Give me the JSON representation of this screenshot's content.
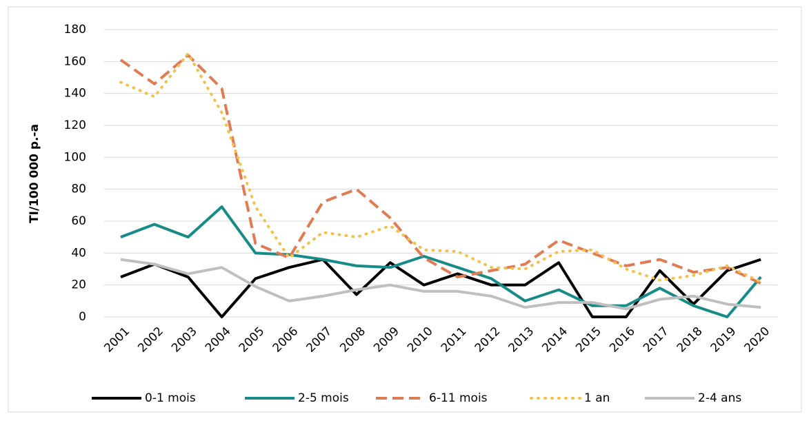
{
  "chart_data": {
    "type": "line",
    "y_label": "TI/100 000 p.-a",
    "categories": [
      "2001",
      "2002",
      "2003",
      "2004",
      "2005",
      "2006",
      "2007",
      "2008",
      "2009",
      "2010",
      "2011",
      "2012",
      "2013",
      "2014",
      "2015",
      "2016",
      "2017",
      "2018",
      "2019",
      "2020"
    ],
    "ylim": [
      0,
      180
    ],
    "yticks": [
      0,
      20,
      40,
      60,
      80,
      100,
      120,
      140,
      160,
      180
    ],
    "grid": true,
    "legend": "bottom",
    "series": [
      {
        "name": "0-1 mois",
        "color": "#000000",
        "dash": "solid",
        "values": [
          25,
          33,
          25,
          0,
          24,
          31,
          36,
          14,
          34,
          20,
          27,
          20,
          20,
          34,
          0,
          0,
          29,
          8,
          29,
          36
        ]
      },
      {
        "name": "2-5 mois",
        "color": "#168b88",
        "dash": "solid",
        "values": [
          50,
          58,
          50,
          69,
          40,
          39,
          36,
          32,
          31,
          38,
          31,
          24,
          10,
          17,
          7,
          7,
          18,
          7,
          0,
          25
        ]
      },
      {
        "name": "6-11 mois",
        "color": "#e07b54",
        "dash": "dashed",
        "values": [
          161,
          146,
          164,
          143,
          46,
          37,
          72,
          80,
          62,
          37,
          25,
          29,
          33,
          48,
          40,
          32,
          36,
          28,
          31,
          21
        ]
      },
      {
        "name": "1 an",
        "color": "#f4c04a",
        "dash": "dotted",
        "values": [
          147,
          138,
          165,
          128,
          69,
          37,
          53,
          50,
          57,
          42,
          41,
          31,
          30,
          41,
          42,
          30,
          23,
          26,
          32,
          22
        ]
      },
      {
        "name": "2-4 ans",
        "color": "#bfbfbf",
        "dash": "solid",
        "values": [
          36,
          33,
          27,
          31,
          19,
          10,
          13,
          17,
          20,
          16,
          16,
          13,
          6,
          9,
          9,
          5,
          11,
          13,
          8,
          6
        ]
      }
    ]
  }
}
